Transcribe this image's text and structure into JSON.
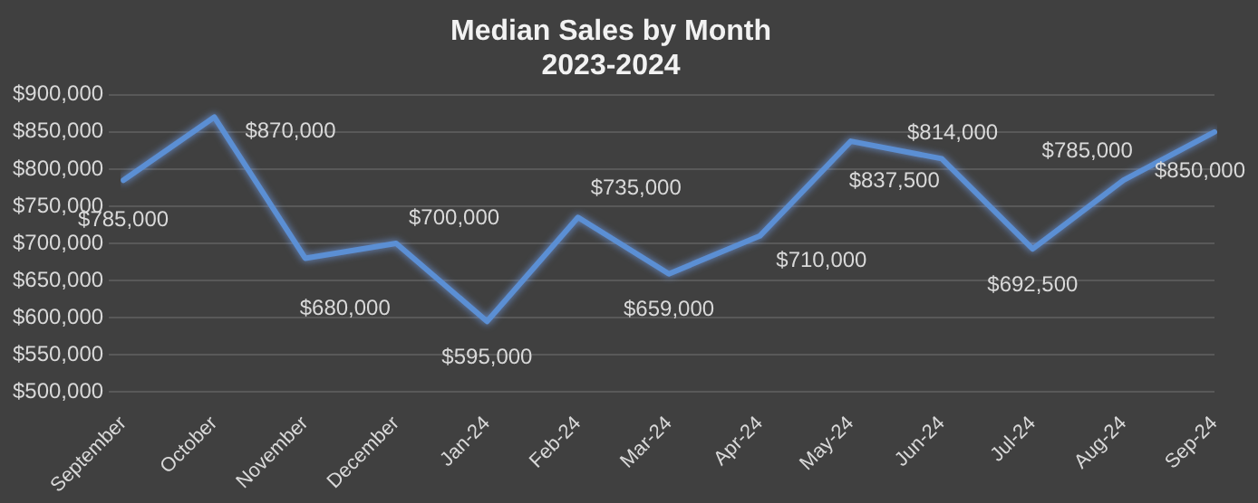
{
  "chart_data": {
    "type": "line",
    "title": "Median Sales by Month",
    "subtitle": "2023-2024",
    "categories": [
      "September",
      "October",
      "November",
      "December",
      "Jan-24",
      "Feb-24",
      "Mar-24",
      "Apr-24",
      "May-24",
      "Jun-24",
      "Jul-24",
      "Aug-24",
      "Sep-24"
    ],
    "series": [
      {
        "color": "#5b8fd4",
        "values": [
          785000,
          870000,
          680000,
          700000,
          595000,
          735000,
          659000,
          710000,
          837500,
          814000,
          692500,
          785000,
          850000
        ]
      }
    ],
    "ylim": [
      500000,
      900000
    ],
    "yticks": [
      {
        "value": 500000,
        "label": "$500,000"
      },
      {
        "value": 550000,
        "label": "$550,000"
      },
      {
        "value": 600000,
        "label": "$600,000"
      },
      {
        "value": 650000,
        "label": "$650,000"
      },
      {
        "value": 700000,
        "label": "$700,000"
      },
      {
        "value": 750000,
        "label": "$750,000"
      },
      {
        "value": 800000,
        "label": "$800,000"
      },
      {
        "value": 850000,
        "label": "$850,000"
      },
      {
        "value": 900000,
        "label": "$900,000"
      }
    ],
    "value_labels": [
      "$785,000",
      "$870,000",
      "$680,000",
      "$700,000",
      "$595,000",
      "$735,000",
      "$659,000",
      "$710,000",
      "$837,500",
      "$814,000",
      "$692,500",
      "$785,000",
      "$850,000"
    ],
    "grid": "y",
    "legend": false,
    "marker": "none",
    "line_style": "solid"
  }
}
